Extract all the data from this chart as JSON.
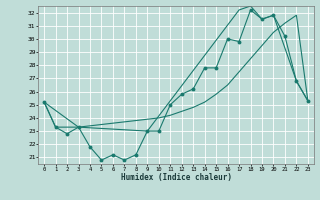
{
  "xlabel": "Humidex (Indice chaleur)",
  "bg_color": "#c0ddd8",
  "grid_color": "#ffffff",
  "line_color": "#1a7a6e",
  "xlim": [
    -0.5,
    23.5
  ],
  "ylim": [
    20.5,
    32.5
  ],
  "xticks": [
    0,
    1,
    2,
    3,
    4,
    5,
    6,
    7,
    8,
    9,
    10,
    11,
    12,
    13,
    14,
    15,
    16,
    17,
    18,
    19,
    20,
    21,
    22,
    23
  ],
  "yticks": [
    21,
    22,
    23,
    24,
    25,
    26,
    27,
    28,
    29,
    30,
    31,
    32
  ],
  "line1_x": [
    0,
    1,
    2,
    3,
    4,
    5,
    6,
    7,
    8,
    9,
    10,
    11,
    12,
    13,
    14,
    15,
    16,
    17,
    18,
    19,
    20,
    21,
    22,
    23
  ],
  "line1_y": [
    25.2,
    23.3,
    22.8,
    23.3,
    21.8,
    20.8,
    21.2,
    20.8,
    21.2,
    23.0,
    23.0,
    25.0,
    25.8,
    26.2,
    27.8,
    27.8,
    30.0,
    29.8,
    32.2,
    31.5,
    31.8,
    30.2,
    26.8,
    25.3
  ],
  "line2_x": [
    0,
    1,
    2,
    3,
    4,
    5,
    6,
    7,
    8,
    9,
    10,
    11,
    12,
    13,
    14,
    15,
    16,
    17,
    18,
    19,
    20,
    21,
    22,
    23
  ],
  "line2_y": [
    25.2,
    23.3,
    23.3,
    23.3,
    23.4,
    23.5,
    23.6,
    23.7,
    23.8,
    23.9,
    24.0,
    24.2,
    24.5,
    24.8,
    25.2,
    25.8,
    26.5,
    27.5,
    28.5,
    29.5,
    30.5,
    31.2,
    31.8,
    25.3
  ],
  "line3_x": [
    0,
    3,
    9,
    17,
    18,
    19,
    20,
    22,
    23
  ],
  "line3_y": [
    25.2,
    23.3,
    23.0,
    32.2,
    32.5,
    31.5,
    31.8,
    26.8,
    25.3
  ]
}
